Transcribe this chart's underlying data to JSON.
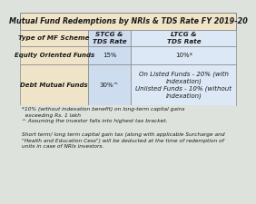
{
  "title": "Mutual Fund Redemptions by NRIs & TDS Rate FY 2019-20",
  "col0_header": "Type of MF Scheme",
  "col1_header": "STCG &\nTDS Rate",
  "col2_header": "LTCG &\nTDS Rate",
  "row1_label": "Equity Oriented Funds",
  "row1_stcg": "15%",
  "row1_ltcg": "10%*",
  "row2_label": "Debt Mutual Funds",
  "row2_stcg": "30%^",
  "row2_ltcg": "On Listed Funds - 20% (with\nindexation)\nUnlisted Funds - 10% (without\nindexation)",
  "footnote1": "*10% (without indexation benefit) on long-term capital gains\n  exceeding Rs. 1 lakh\n^ Assuming the investor falls into highest tax bracket.",
  "footnote2": "Short term/ long term capital gain tax (along with applicable Surcharge and\n\"Health and Education Cess\") will be deducted at the time of redemption of\nunits in case of NRIs investors.",
  "title_bg": "#f0e4c8",
  "header_bg": "#f0e4c8",
  "label_col_bg": "#f0e4c8",
  "stcg_col_bg": "#cddcef",
  "ltcg_col_bg": "#dce8f5",
  "footer_bg": "#dde3dc",
  "outer_bg": "#dde3dc",
  "border_color": "#888888",
  "title_fontsize": 5.8,
  "header_fontsize": 5.2,
  "cell_fontsize": 5.0,
  "footnote_fontsize": 4.2
}
